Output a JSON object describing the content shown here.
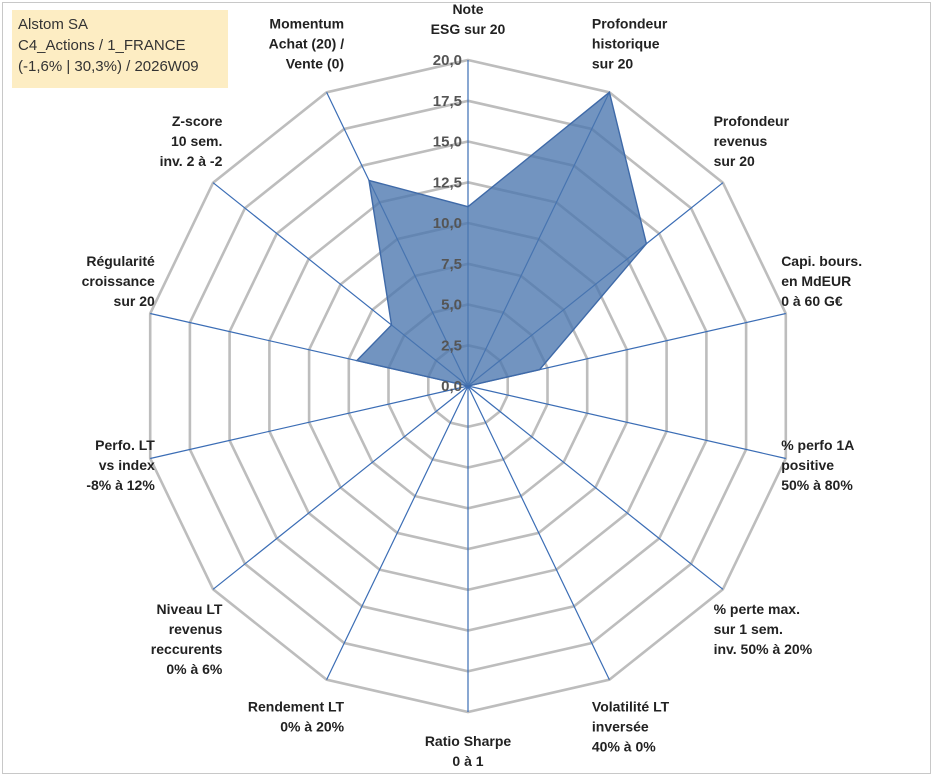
{
  "info_box": {
    "line1": "Alstom SA",
    "line2": "C4_Actions / 1_FRANCE",
    "line3": "(-1,6% | 30,3%) / 2026W09"
  },
  "colors": {
    "grid": "#bdbdbd",
    "spoke": "#3b6db5",
    "fill": "#4a76ae",
    "fill_opacity": 0.78,
    "stroke": "#3f6aa8",
    "info_bg": "#fdedc3"
  },
  "chart_data": {
    "type": "radar",
    "title": "",
    "rlim": [
      0,
      20
    ],
    "ticks": [
      "0,0",
      "2,5",
      "5,0",
      "7,5",
      "10,0",
      "12,5",
      "15,0",
      "17,5",
      "20,0"
    ],
    "tick_values": [
      0,
      2.5,
      5,
      7.5,
      10,
      12.5,
      15,
      17.5,
      20
    ],
    "grid": true,
    "legend": "none",
    "categories": [
      [
        "Note",
        "ESG sur 20"
      ],
      [
        "Profondeur",
        "historique",
        "sur 20"
      ],
      [
        "Profondeur",
        "revenus",
        "sur 20"
      ],
      [
        "Capi. bours.",
        "en MdEUR",
        "0 à 60 G€"
      ],
      [
        "% perfo 1A",
        "positive",
        "50% à 80%"
      ],
      [
        "% perte max.",
        "sur 1 sem.",
        "inv. 50% à 20%"
      ],
      [
        "Volatilité LT",
        "inversée",
        "40% à 0%"
      ],
      [
        "Ratio Sharpe",
        "0 à 1"
      ],
      [
        "Rendement LT",
        "0% à 20%"
      ],
      [
        "Niveau LT",
        "revenus",
        "reccurents",
        "0% à 6%"
      ],
      [
        "Perfo. LT",
        "vs index",
        "-8% à 12%"
      ],
      [
        "Régularité",
        "croissance",
        "sur 20"
      ],
      [
        "Z-score",
        "10 sem.",
        "inv. 2 à -2"
      ],
      [
        "Momentum",
        "Achat (20) /",
        "Vente (0)"
      ]
    ],
    "series": [
      {
        "values": [
          11,
          20,
          14,
          4.5,
          0,
          0,
          0,
          0,
          0,
          0,
          0,
          7,
          6,
          14
        ]
      }
    ]
  }
}
